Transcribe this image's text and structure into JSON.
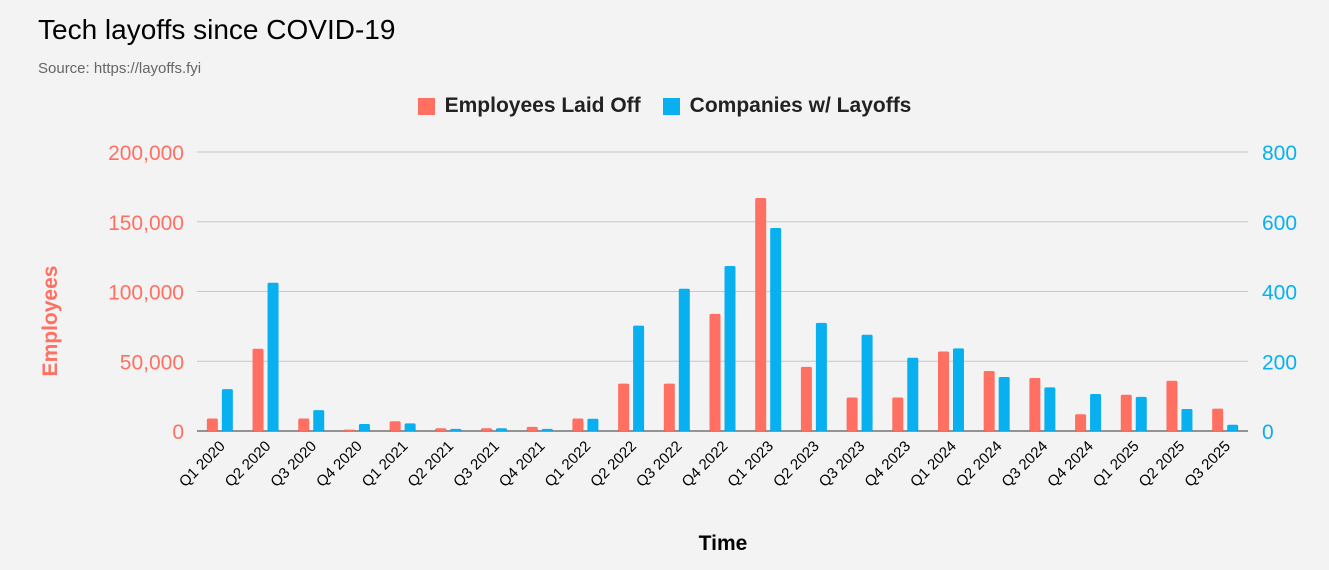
{
  "title": "Tech layoffs since COVID-19",
  "subtitle": "Source: https://layoffs.fyi",
  "colors": {
    "employees": "#ff7063",
    "companies": "#09b0f0",
    "grid": "#c8c8c8",
    "background": "#f3f3f3"
  },
  "chart_data": {
    "type": "bar",
    "title": "Tech layoffs since COVID-19",
    "subtitle": "Source: https://layoffs.fyi",
    "xlabel": "Time",
    "ylabel": "Employees",
    "y2label": "",
    "categories": [
      "Q1 2020",
      "Q2 2020",
      "Q3 2020",
      "Q4 2020",
      "Q1 2021",
      "Q2 2021",
      "Q3 2021",
      "Q4 2021",
      "Q1 2022",
      "Q2 2022",
      "Q3 2022",
      "Q4 2022",
      "Q1 2023",
      "Q2 2023",
      "Q3 2023",
      "Q4 2023",
      "Q1 2024",
      "Q2 2024",
      "Q3 2024",
      "Q4 2024",
      "Q1 2025",
      "Q2 2025",
      "Q3 2025"
    ],
    "series": [
      {
        "name": "Employees Laid Off",
        "axis": "left",
        "color": "#ff7063",
        "values": [
          9000,
          59000,
          9000,
          1000,
          7000,
          2000,
          2000,
          3000,
          9000,
          34000,
          34000,
          84000,
          167000,
          46000,
          24000,
          24000,
          57000,
          43000,
          38000,
          12000,
          26000,
          36000,
          16000
        ]
      },
      {
        "name": "Companies w/ Layoffs",
        "axis": "right",
        "color": "#09b0f0",
        "values": [
          120,
          425,
          60,
          20,
          22,
          6,
          8,
          6,
          35,
          302,
          408,
          473,
          582,
          310,
          276,
          210,
          237,
          155,
          125,
          106,
          98,
          63,
          18
        ]
      }
    ],
    "ylim": [
      0,
      200000
    ],
    "y2lim": [
      0,
      800
    ],
    "yticks": [
      "0",
      "50,000",
      "100,000",
      "150,000",
      "200,000"
    ],
    "y2ticks": [
      "0",
      "200",
      "400",
      "600",
      "800"
    ],
    "grid": true,
    "legend": "top-center"
  }
}
